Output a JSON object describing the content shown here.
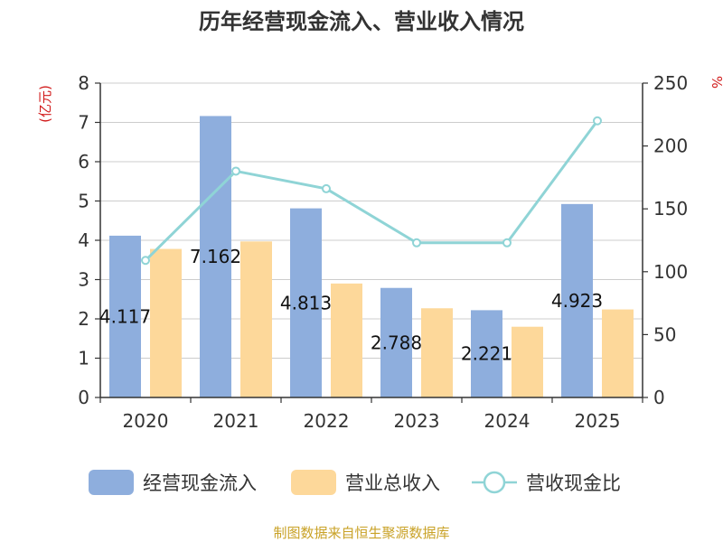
{
  "chart_data": {
    "type": "bar",
    "title": "历年经营现金流入、营业收入情况",
    "categories": [
      "2020",
      "2021",
      "2022",
      "2023",
      "2024",
      "2025"
    ],
    "y_left": {
      "unit": "(亿元)",
      "range": [
        0,
        8
      ],
      "ticks": [
        "0",
        "1",
        "2",
        "3",
        "4",
        "5",
        "6",
        "7",
        "8"
      ]
    },
    "y_right": {
      "unit": "%",
      "range": [
        0,
        250
      ],
      "ticks": [
        "0",
        "50",
        "100",
        "150",
        "200",
        "250"
      ]
    },
    "grid": true,
    "legend_position": "bottom",
    "series": [
      {
        "name": "经营现金流入",
        "type": "bar",
        "axis": "left",
        "color": "#8eaedd",
        "values": [
          4.117,
          7.162,
          4.813,
          2.788,
          2.221,
          4.923
        ],
        "labels": [
          "4.117",
          "7.162",
          "4.813",
          "2.788",
          "2.221",
          "4.923"
        ]
      },
      {
        "name": "营业总收入",
        "type": "bar",
        "axis": "left",
        "color": "#fdd89a",
        "values": [
          3.78,
          3.97,
          2.9,
          2.27,
          1.8,
          2.24
        ]
      },
      {
        "name": "营收现金比",
        "type": "line",
        "axis": "right",
        "color": "#8fd4d6",
        "values": [
          109,
          180,
          166,
          123,
          123,
          220
        ]
      }
    ],
    "source": "制图数据来自恒生聚源数据库"
  }
}
